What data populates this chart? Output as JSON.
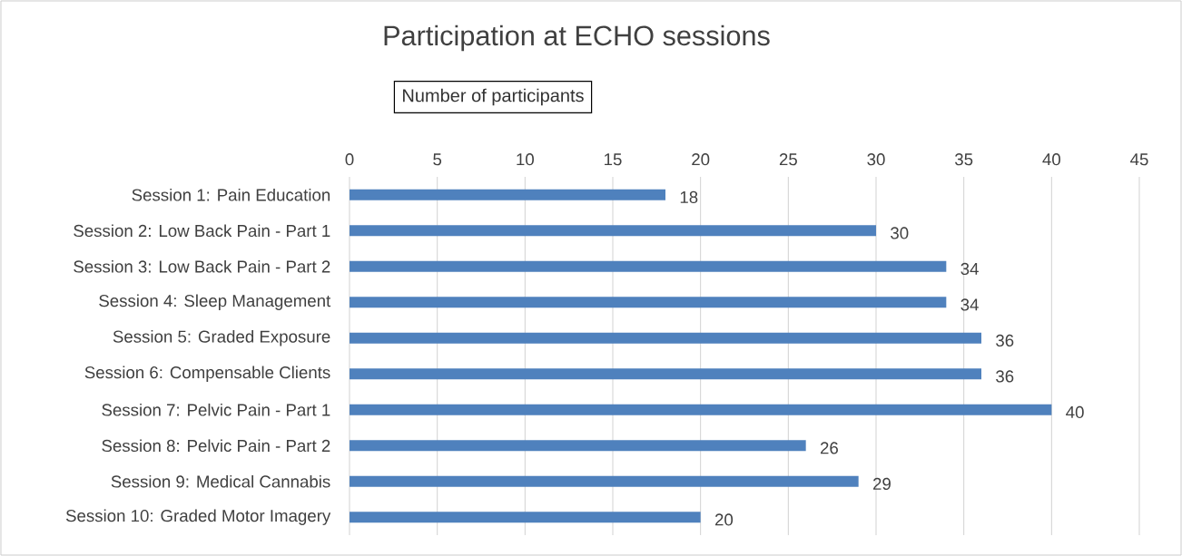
{
  "chart_data": {
    "type": "bar",
    "orientation": "horizontal",
    "title": "Participation at ECHO sessions",
    "xlabel": "Number of participants",
    "categories": [
      "Session 1: Pain Education",
      "Session 2: Low Back Pain - Part 1",
      "Session 3: Low Back Pain - Part 2",
      "Session 4: Sleep Management",
      "Session 5: Graded Exposure",
      "Session 6: Compensable Clients",
      "Session 7: Pelvic Pain - Part 1",
      "Session 8: Pelvic Pain - Part 2",
      "Session 9: Medical Cannabis",
      "Session 10: Graded Motor Imagery"
    ],
    "values": [
      18,
      30,
      34,
      34,
      36,
      36,
      40,
      26,
      29,
      20
    ],
    "color": "#4f81bd",
    "xlim": [
      0,
      45
    ],
    "xticks": [
      0,
      5,
      10,
      15,
      20,
      25,
      30,
      35,
      40,
      45
    ],
    "grid": "x",
    "data_labels": true
  }
}
